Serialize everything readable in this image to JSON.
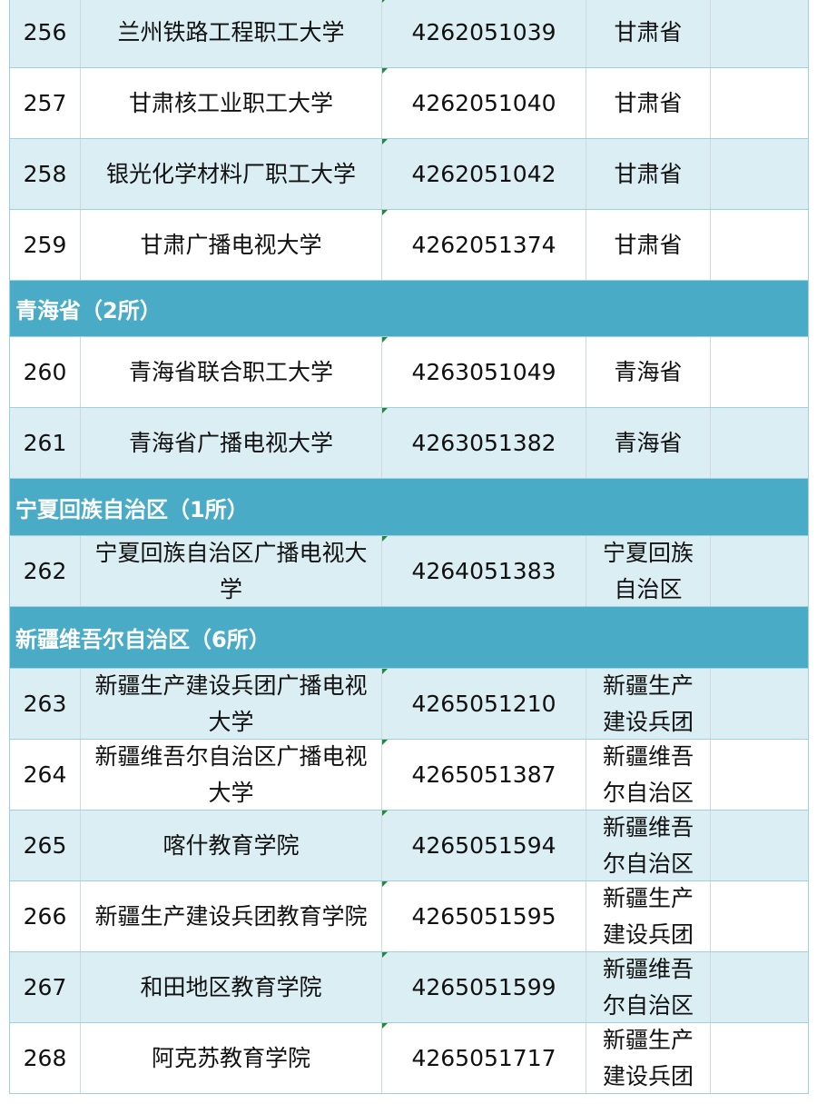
{
  "colors": {
    "group_header": "#4aabc6",
    "light_row": "#daeef3",
    "border": "#9fd0de",
    "marker": "#1e8a3a"
  },
  "rows": [
    {
      "type": "item",
      "no": "256",
      "name": "兰州铁路工程职工大学",
      "code": "4262051039",
      "province": "甘肃省"
    },
    {
      "type": "item",
      "no": "257",
      "name": "甘肃核工业职工大学",
      "code": "4262051040",
      "province": "甘肃省"
    },
    {
      "type": "item",
      "no": "258",
      "name": "银光化学材料厂职工大学",
      "code": "4262051042",
      "province": "甘肃省"
    },
    {
      "type": "item",
      "no": "259",
      "name": "甘肃广播电视大学",
      "code": "4262051374",
      "province": "甘肃省"
    },
    {
      "type": "group",
      "title": "青海省（2所）"
    },
    {
      "type": "item",
      "no": "260",
      "name": "青海省联合职工大学",
      "code": "4263051049",
      "province": "青海省"
    },
    {
      "type": "item",
      "no": "261",
      "name": "青海省广播电视大学",
      "code": "4263051382",
      "province": "青海省"
    },
    {
      "type": "group",
      "title": "宁夏回族自治区（1所）"
    },
    {
      "type": "item",
      "no": "262",
      "name": "宁夏回族自治区广播电视大学",
      "code": "4264051383",
      "province": "宁夏回族自治区"
    },
    {
      "type": "group",
      "title": "新疆维吾尔自治区（6所）"
    },
    {
      "type": "item",
      "no": "263",
      "name": "新疆生产建设兵团广播电视大学",
      "code": "4265051210",
      "province": "新疆生产建设兵团"
    },
    {
      "type": "item",
      "no": "264",
      "name": "新疆维吾尔自治区广播电视大学",
      "code": "4265051387",
      "province": "新疆维吾尔自治区"
    },
    {
      "type": "item",
      "no": "265",
      "name": "喀什教育学院",
      "code": "4265051594",
      "province": "新疆维吾尔自治区"
    },
    {
      "type": "item",
      "no": "266",
      "name": "新疆生产建设兵团教育学院",
      "code": "4265051595",
      "province": "新疆生产建设兵团"
    },
    {
      "type": "item",
      "no": "267",
      "name": "和田地区教育学院",
      "code": "4265051599",
      "province": "新疆维吾尔自治区"
    },
    {
      "type": "item",
      "no": "268",
      "name": "阿克苏教育学院",
      "code": "4265051717",
      "province": "新疆生产建设兵团"
    }
  ]
}
